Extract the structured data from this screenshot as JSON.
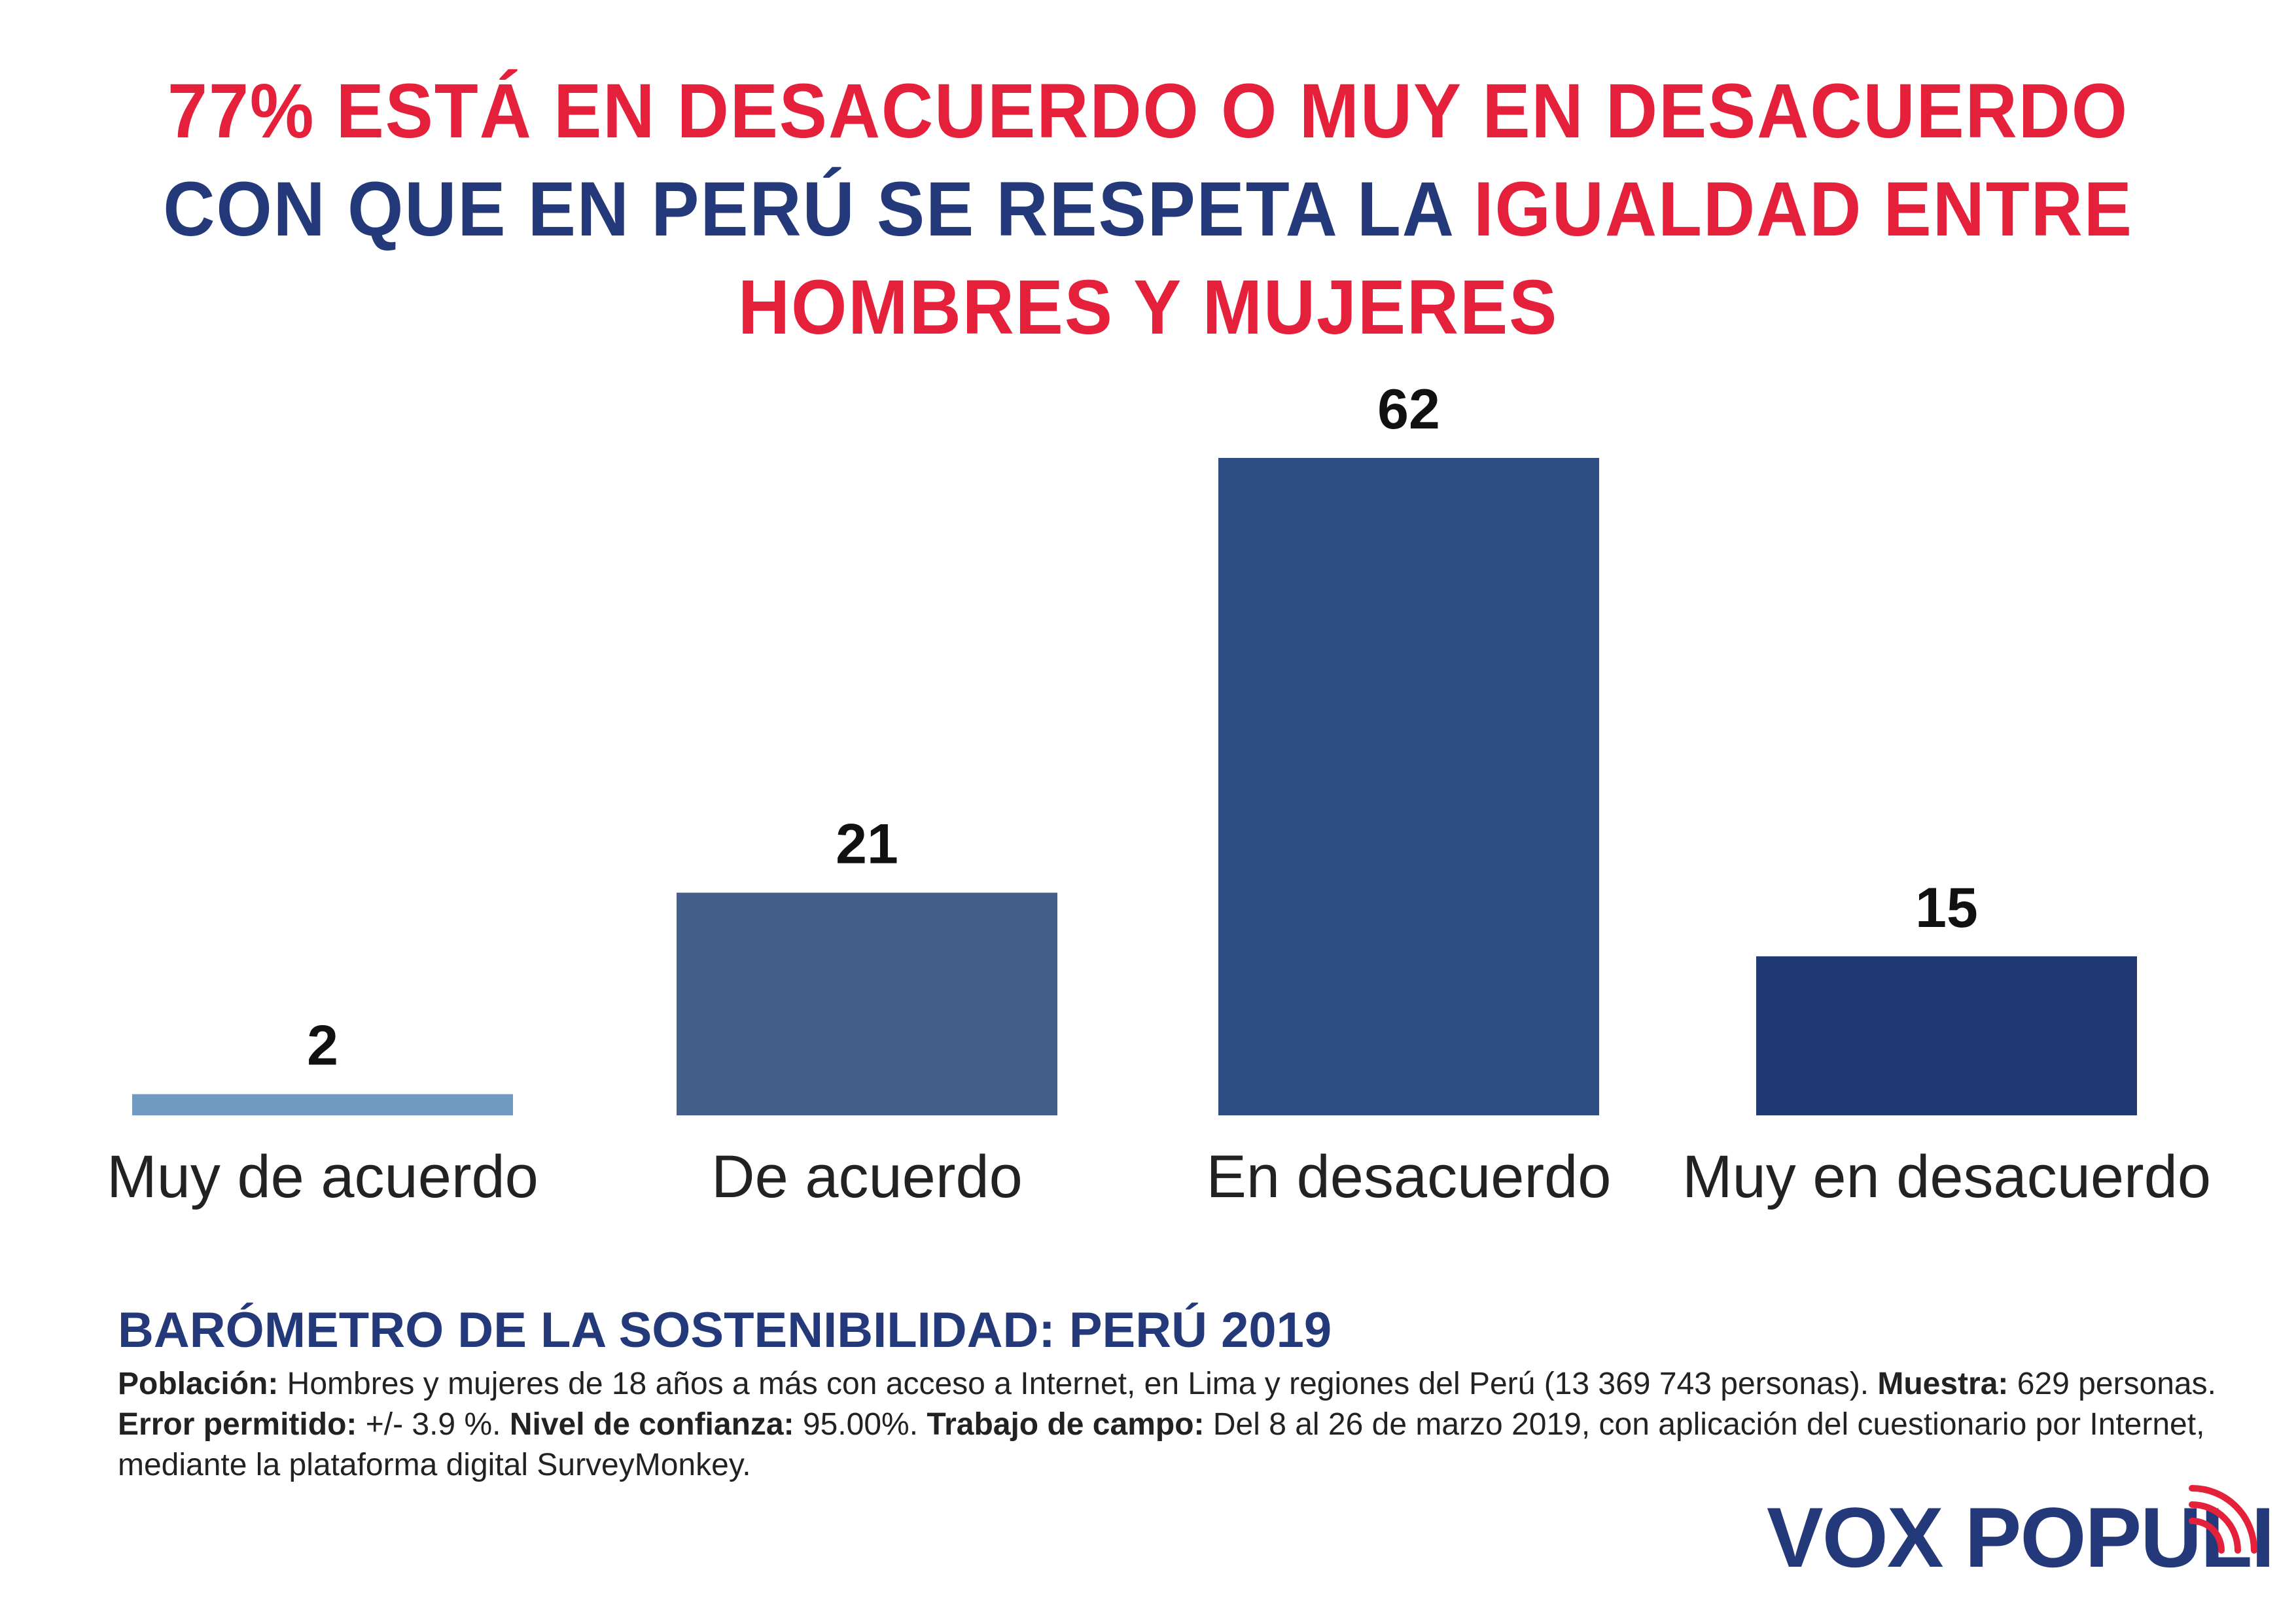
{
  "title": {
    "segments": [
      {
        "text": "77% ESTÁ EN DESACUERDO O MUY EN DESACUERDO",
        "color": "#e5203a"
      },
      {
        "text": " CON QUE EN PERÚ SE RESPETA LA ",
        "color": "#23397a"
      },
      {
        "text": "IGUALDAD ENTRE HOMBRES Y MUJERES",
        "color": "#e5203a"
      }
    ]
  },
  "chart_data": {
    "type": "bar",
    "categories": [
      "Muy de acuerdo",
      "De acuerdo",
      "En desacuerdo",
      "Muy en desacuerdo"
    ],
    "values": [
      2,
      21,
      62,
      15
    ],
    "colors": [
      "#6f9bc2",
      "#435f8a",
      "#2e4d82",
      "#213a73"
    ],
    "ylim": [
      0,
      62
    ],
    "grid": false,
    "legend": false,
    "data_labels": true
  },
  "source": {
    "title": "BARÓMETRO DE LA SOSTENIBILIDAD: PERÚ 2019",
    "poblacion_label": "Población:",
    "poblacion_text": " Hombres y mujeres de 18 años a más con acceso a Internet, en Lima y regiones del Perú (13 369 743 personas). ",
    "muestra_label": "Muestra:",
    "muestra_text": " 629 personas.",
    "error_label": "Error permitido:",
    "error_text": " +/- 3.9 %. ",
    "nivel_label": "Nivel de confianza:",
    "nivel_text": " 95.00%. ",
    "trabajo_label": "Trabajo de campo:",
    "trabajo_text": " Del 8 al 26 de marzo 2019, con aplicación del cuestionario por Internet, mediante la plataforma digital SurveyMonkey."
  },
  "logo": {
    "text": "VOX POPULI",
    "text_color": "#23397a",
    "signal_color": "#e5203a",
    "icon": "signal-waves-icon"
  }
}
